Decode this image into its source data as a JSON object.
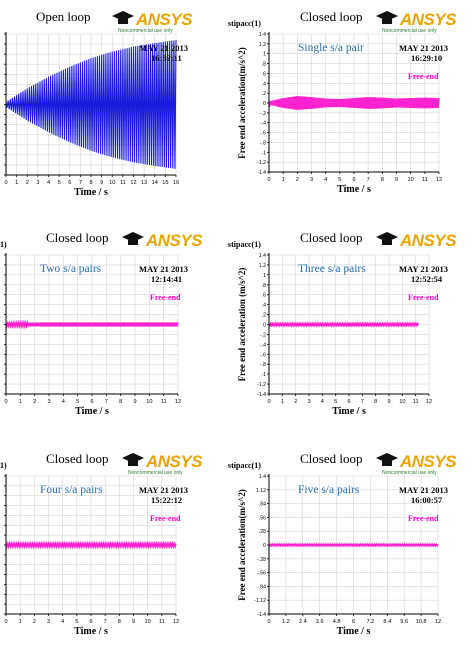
{
  "panels": [
    {
      "heading": "Open loop",
      "subtitle": "",
      "var_label": "",
      "date": "MAY 21 2013",
      "time": "16:3?:11",
      "legend": "",
      "ylabel": "",
      "ansys_word": "ANSYS",
      "ansys_note": "Noncommercial use only"
    },
    {
      "heading": "Closed loop",
      "subtitle": "Single s/a pair",
      "var_label": "stipacc(1)",
      "date": "MAY 21 2013",
      "time": "16:29:10",
      "legend": "Free-end",
      "ylabel": "Free end acceleration(m/s^2)",
      "ansys_word": "ANSYS",
      "ansys_note": "Noncommercial use only"
    },
    {
      "heading": "Closed loop",
      "subtitle": "Two s/a pairs",
      "var_label": "1)",
      "date": "MAY 21 2013",
      "time": "12:14:41",
      "legend": "Free-end",
      "ylabel": "",
      "ansys_word": "ANSYS",
      "ansys_note": ""
    },
    {
      "heading": "Closed loop",
      "subtitle": "Three s/a pairs",
      "var_label": "stipacc(1)",
      "date": "MAY 21 2013",
      "time": "12:52:54",
      "legend": "Free-end",
      "ylabel": "Free end acceleration (m/s^2)",
      "ansys_word": "ANSYS",
      "ansys_note": ""
    },
    {
      "heading": "Closed loop",
      "subtitle": "Four s/a pairs",
      "var_label": "1)",
      "date": "MAY 21 2013",
      "time": "15:22:12",
      "legend": "Free-end",
      "ylabel": "",
      "ansys_word": "ANSYS",
      "ansys_note": "Noncommercial use only"
    },
    {
      "heading": "Closed loop",
      "subtitle": "Five s/a pairs",
      "var_label": "stipacc(1)",
      "date": "MAY 21 2013",
      "time": "16:00:57",
      "legend": "Free-end",
      "ylabel": "Free end acceleration(m/s^2)",
      "ansys_word": "ANSYS",
      "ansys_note": "Noncommercial use only"
    }
  ],
  "colors": {
    "open_loop_signal": "#1a1adc",
    "closed_loop_signal": "#ff22d0",
    "subtitle_text": "#2a6fb4",
    "legend_text": "#ff00cc",
    "ansys_logo": "#e8a400",
    "grid": "#d4d4d4",
    "axis": "#000000"
  },
  "chart_data": [
    {
      "type": "line",
      "title": "Open loop",
      "xlabel": "Time / s",
      "ylabel": "",
      "xlim": [
        0,
        16
      ],
      "ylim": [
        -1.4,
        1.4
      ],
      "x_ticks": [
        "0",
        "1",
        "2",
        "3",
        "4",
        "5",
        "6",
        "7",
        "8",
        "9",
        "10",
        "11",
        "12",
        "13",
        "14",
        "15",
        "16"
      ],
      "y_ticks": [
        "",
        "",
        "",
        "",
        "",
        "",
        "",
        "",
        "",
        "",
        "",
        "",
        "",
        "",
        ""
      ],
      "grid": true,
      "series": [
        {
          "envelope": {
            "x": [
              0,
              2,
              4,
              6,
              8,
              10,
              12,
              14,
              16
            ],
            "upper": [
              0.05,
              0.32,
              0.55,
              0.75,
              0.92,
              1.05,
              1.15,
              1.22,
              1.28
            ]
          },
          "mean": 0,
          "cycles_per_unit_x": 5
        }
      ]
    },
    {
      "type": "line",
      "title": "Closed loop",
      "xlabel": "Time / s",
      "ylabel": "Free end acceleration(m/s^2)",
      "xlim": [
        0,
        12
      ],
      "ylim": [
        -1.4,
        1.4
      ],
      "x_ticks": [
        "0",
        "1",
        "2",
        "3",
        "4",
        "5",
        "6",
        "7",
        "8",
        "9",
        "10",
        "11",
        "12"
      ],
      "y_ticks": [
        "1.4",
        "1.2",
        "1",
        ".8",
        ".6",
        ".4",
        ".2",
        "0",
        "-.2",
        "-.4",
        "-.6",
        "-.8",
        "-1",
        "-1.2",
        "-1.4"
      ],
      "grid": true,
      "series": [
        {
          "name": "Free-end",
          "envelope": {
            "x": [
              0,
              1,
              2,
              3,
              4,
              5,
              6,
              7,
              8,
              9,
              10,
              11,
              12
            ],
            "upper": [
              0.03,
              0.1,
              0.14,
              0.12,
              0.09,
              0.08,
              0.1,
              0.12,
              0.11,
              0.09,
              0.1,
              0.11,
              0.1
            ]
          },
          "mean": 0,
          "cycles_per_unit_x": 8
        }
      ]
    },
    {
      "type": "line",
      "title": "Closed loop",
      "xlabel": "Time / s",
      "ylabel": "",
      "xlim": [
        0,
        12
      ],
      "ylim": [
        -1.4,
        1.4
      ],
      "x_ticks": [
        "0",
        "1",
        "2",
        "3",
        "4",
        "5",
        "6",
        "7",
        "8",
        "9",
        "10",
        "11",
        "12"
      ],
      "y_ticks": [
        "",
        "",
        "",
        "",
        "",
        "",
        "",
        "",
        "",
        "",
        "",
        "",
        "",
        "",
        ""
      ],
      "grid": true,
      "series": [
        {
          "name": "Free-end",
          "envelope": {
            "x": [
              0,
              3,
              6,
              9,
              12
            ],
            "upper": [
              0.03,
              0.04,
              0.04,
              0.04,
              0.04
            ]
          },
          "mean": 0,
          "cycles_per_unit_x": 8
        }
      ]
    },
    {
      "type": "line",
      "title": "Closed loop",
      "xlabel": "Time / s",
      "ylabel": "Free end acceleration (m/s^2)",
      "xlim": [
        0,
        12
      ],
      "ylim": [
        -1.4,
        1.4
      ],
      "x_ticks": [
        "0",
        "1",
        "2",
        "3",
        "4",
        "5",
        "6",
        "7",
        "8",
        "9",
        "10",
        "11",
        "12"
      ],
      "y_ticks": [
        "1.4",
        "1.2",
        "1",
        ".8",
        ".6",
        ".4",
        ".2",
        "0",
        "-.2",
        "-.4",
        "-.6",
        "-.8",
        "-1",
        "-1.2",
        "-1.4"
      ],
      "grid": true,
      "series": [
        {
          "name": "Free-end",
          "envelope": {
            "x": [
              0,
              3,
              6,
              9,
              11.2
            ],
            "upper": [
              0.02,
              0.02,
              0.02,
              0.02,
              0.02
            ]
          },
          "mean": 0,
          "cycles_per_unit_x": 8
        }
      ]
    },
    {
      "type": "line",
      "title": "Closed loop",
      "xlabel": "Time / s",
      "ylabel": "",
      "xlim": [
        0,
        12
      ],
      "ylim": [
        -1.4,
        1.4
      ],
      "x_ticks": [
        "0",
        "1",
        "2",
        "3",
        "4",
        "5",
        "6",
        "7",
        "8",
        "9",
        "10",
        "11",
        "12"
      ],
      "y_ticks": [
        "",
        "",
        "",
        "",
        "",
        "",
        "",
        "",
        "",
        "",
        "",
        "",
        "",
        "",
        ""
      ],
      "grid": true,
      "series": [
        {
          "name": "Free-end",
          "envelope": {
            "x": [
              0,
              3,
              6,
              9,
              12
            ],
            "upper": [
              0.03,
              0.03,
              0.03,
              0.03,
              0.03
            ]
          },
          "mean": 0,
          "cycles_per_unit_x": 8
        }
      ]
    },
    {
      "type": "line",
      "title": "Closed loop",
      "xlabel": "Time / s",
      "ylabel": "Free end acceleration(m/s^2)",
      "xlim": [
        0,
        12
      ],
      "ylim": [
        -1.4,
        1.4
      ],
      "x_ticks": [
        "0",
        "1.2",
        "2.4",
        "3.6",
        "4.8",
        "6",
        "7.2",
        "8.4",
        "9.6",
        "10.8",
        "12"
      ],
      "y_ticks": [
        "1.4",
        "1.12",
        ".84",
        ".56",
        ".28",
        "0",
        "-.28",
        "-.56",
        "-.84",
        "-1.12",
        "-1.4"
      ],
      "grid": true,
      "series": [
        {
          "name": "Free-end",
          "envelope": {
            "x": [
              0,
              4,
              8,
              12
            ],
            "upper": [
              0.015,
              0.015,
              0.015,
              0.015
            ]
          },
          "mean": 0,
          "cycles_per_unit_x": 8
        }
      ]
    }
  ]
}
